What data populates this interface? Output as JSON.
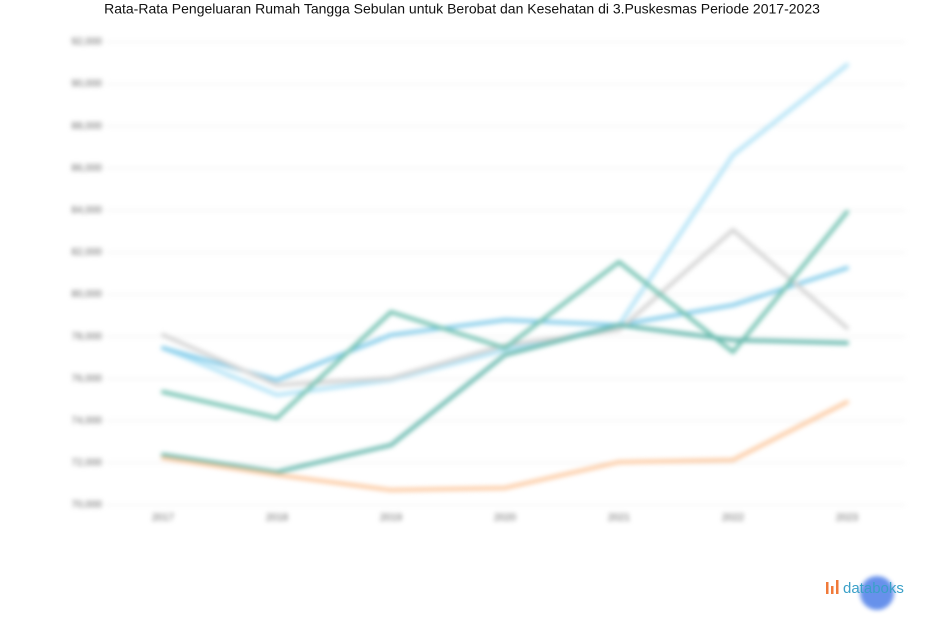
{
  "chart_data": {
    "type": "line",
    "title": "Rata-Rata Pengeluaran Rumah Tangga Sebulan untuk Berobat dan Kesehatan di 3.Puskesmas Periode 2017-2023",
    "categories": [
      "2017",
      "2018",
      "2019",
      "2020",
      "2021",
      "2022",
      "2023"
    ],
    "series": [
      {
        "color": "#b3e3f6",
        "values": [
          77460,
          75230,
          75940,
          77370,
          78550,
          86630,
          90910
        ]
      },
      {
        "color": "#86cdea",
        "values": [
          77460,
          75940,
          78080,
          78790,
          78550,
          79500,
          81260
        ]
      },
      {
        "color": "#d4d4d4",
        "values": [
          78080,
          75700,
          76030,
          77600,
          78320,
          83070,
          78410
        ]
      },
      {
        "color": "#74c2b2",
        "values": [
          75370,
          74130,
          79170,
          77460,
          81550,
          77270,
          83920
        ]
      },
      {
        "color": "#66b8ad",
        "values": [
          72380,
          71570,
          72850,
          77130,
          78550,
          77840,
          77700
        ]
      },
      {
        "color": "#fccaa2",
        "values": [
          72230,
          71430,
          70710,
          70810,
          72040,
          72140,
          74890
        ]
      }
    ],
    "ylim": [
      70000,
      92000
    ],
    "yticks": [
      {
        "value": 70000,
        "label": "70,000"
      },
      {
        "value": 72000,
        "label": "72,000"
      },
      {
        "value": 74000,
        "label": "74,000"
      },
      {
        "value": 76000,
        "label": "76,000"
      },
      {
        "value": 78000,
        "label": "78,000"
      },
      {
        "value": 80000,
        "label": "80,000"
      },
      {
        "value": 82000,
        "label": "82,000"
      },
      {
        "value": 84000,
        "label": "84,000"
      },
      {
        "value": 86000,
        "label": "86,000"
      },
      {
        "value": 88000,
        "label": "88,000"
      },
      {
        "value": 90000,
        "label": "90,000"
      },
      {
        "value": 92000,
        "label": "92,000"
      }
    ],
    "grid": true,
    "logo": "databoks"
  }
}
